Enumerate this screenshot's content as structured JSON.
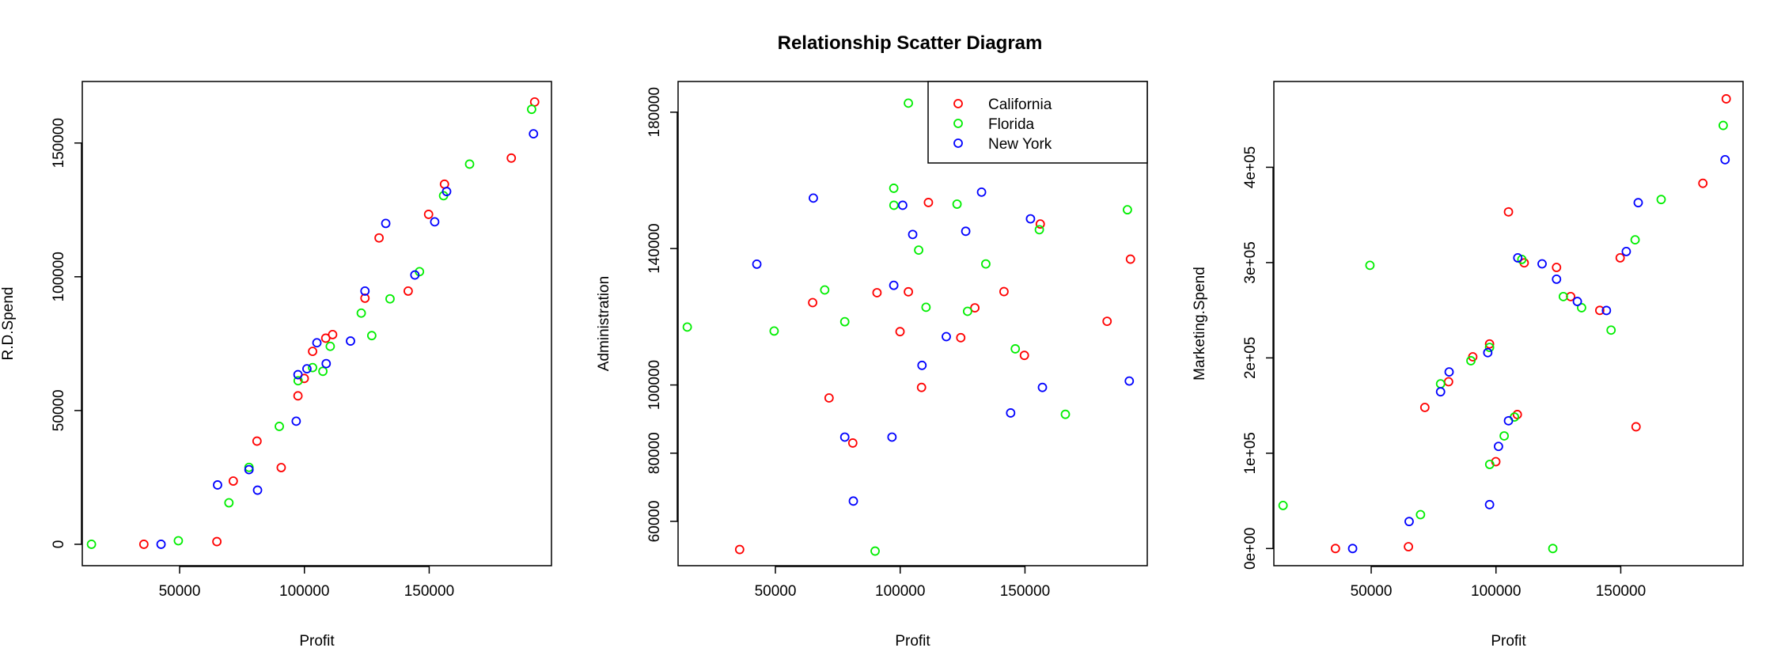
{
  "chart_data": {
    "title": "Relationship Scatter Diagram",
    "type": "scatter",
    "groups": [
      {
        "name": "California",
        "color": "#ff0000"
      },
      {
        "name": "Florida",
        "color": "#00ee00"
      },
      {
        "name": "New York",
        "color": "#0000ff"
      }
    ],
    "panels": [
      {
        "xlabel": "Profit",
        "ylabel": "R.D.Spend",
        "xlim": [
          11000,
          199000
        ],
        "ylim": [
          -8000,
          173000
        ],
        "x_ticks": [
          50000,
          100000,
          150000
        ],
        "x_tick_labels": [
          "50000",
          "100000",
          "150000"
        ],
        "y_ticks": [
          0,
          50000,
          100000,
          150000
        ],
        "y_tick_labels": [
          "0",
          "50000",
          "100000",
          "150000"
        ],
        "legend": null,
        "series": [
          {
            "group": "California",
            "points": [
              [
                35673,
                0
              ],
              [
                64927,
                1000
              ],
              [
                71498,
                23640
              ],
              [
                81005,
                38558
              ],
              [
                90708,
                28663
              ],
              [
                97427,
                55494
              ],
              [
                99938,
                61994
              ],
              [
                103282,
                72108
              ],
              [
                108552,
                77044
              ],
              [
                111313,
                78389
              ],
              [
                124266,
                91992
              ],
              [
                129917,
                114523
              ],
              [
                141586,
                94657
              ],
              [
                149760,
                123335
              ],
              [
                156123,
                134615
              ],
              [
                182902,
                144372
              ],
              [
                192262,
                165349
              ]
            ]
          },
          {
            "group": "Florida",
            "points": [
              [
                14681,
                0
              ],
              [
                49491,
                1316
              ],
              [
                69759,
                15506
              ],
              [
                77798,
                28754
              ],
              [
                89949,
                44070
              ],
              [
                97483,
                61136
              ],
              [
                103282,
                66052
              ],
              [
                107404,
                64665
              ],
              [
                110352,
                73994
              ],
              [
                122777,
                86420
              ],
              [
                126993,
                78013
              ],
              [
                134307,
                91749
              ],
              [
                146122,
                101913
              ],
              [
                155753,
                130298
              ],
              [
                166188,
                142107
              ],
              [
                191050,
                162598
              ]
            ]
          },
          {
            "group": "New York",
            "points": [
              [
                42560,
                0
              ],
              [
                65200,
                22178
              ],
              [
                77799,
                27893
              ],
              [
                81229,
                20230
              ],
              [
                96712,
                46014
              ],
              [
                97428,
                63408
              ],
              [
                101004,
                65605
              ],
              [
                105008,
                75329
              ],
              [
                108734,
                67533
              ],
              [
                118474,
                75973
              ],
              [
                124267,
                94657
              ],
              [
                132602,
                119943
              ],
              [
                144259,
                100672
              ],
              [
                152212,
                120543
              ],
              [
                156991,
                131877
              ],
              [
                191792,
                153442
              ]
            ]
          }
        ]
      },
      {
        "xlabel": "Profit",
        "ylabel": "Administration",
        "xlim": [
          11000,
          199000
        ],
        "ylim": [
          47000,
          189000
        ],
        "x_ticks": [
          50000,
          100000,
          150000
        ],
        "x_tick_labels": [
          "50000",
          "100000",
          "150000"
        ],
        "y_ticks": [
          60000,
          80000,
          100000,
          140000,
          180000
        ],
        "y_tick_labels": [
          "60000",
          "80000",
          "100000",
          "140000",
          "180000"
        ],
        "legend": "top-right",
        "series": [
          {
            "group": "California",
            "points": [
              [
                35673,
                51744
              ],
              [
                64927,
                124153
              ],
              [
                71498,
                96189
              ],
              [
                81005,
                82982
              ],
              [
                90708,
                127057
              ],
              [
                99938,
                115641
              ],
              [
                103282,
                127320
              ],
              [
                108552,
                99282
              ],
              [
                111313,
                153514
              ],
              [
                124266,
                113867
              ],
              [
                129917,
                122616
              ],
              [
                141586,
                127382
              ],
              [
                149760,
                108679
              ],
              [
                156123,
                147198
              ],
              [
                182902,
                118671
              ],
              [
                192262,
                136898
              ]
            ]
          },
          {
            "group": "Florida",
            "points": [
              [
                14681,
                116984
              ],
              [
                49491,
                115817
              ],
              [
                69759,
                127864
              ],
              [
                77798,
                118546
              ],
              [
                89949,
                51283
              ],
              [
                97427,
                157694
              ],
              [
                97483,
                152702
              ],
              [
                103282,
                182646
              ],
              [
                107404,
                139553
              ],
              [
                110352,
                122782
              ],
              [
                122777,
                153032
              ],
              [
                126993,
                121597
              ],
              [
                134307,
                135496
              ],
              [
                146122,
                110594
              ],
              [
                155753,
                145530
              ],
              [
                166188,
                91391
              ],
              [
                191050,
                151378
              ]
            ]
          },
          {
            "group": "New York",
            "points": [
              [
                42560,
                135427
              ],
              [
                65200,
                154806
              ],
              [
                77799,
                84710
              ],
              [
                81229,
                65948
              ],
              [
                96712,
                84710
              ],
              [
                97428,
                129219
              ],
              [
                101004,
                152702
              ],
              [
                105008,
                144136
              ],
              [
                108734,
                105751
              ],
              [
                118474,
                114175
              ],
              [
                126267,
                145078
              ],
              [
                132602,
                156547
              ],
              [
                144259,
                91791
              ],
              [
                152212,
                148719
              ],
              [
                156991,
                99282
              ],
              [
                191792,
                101146
              ]
            ]
          }
        ]
      },
      {
        "xlabel": "Profit",
        "ylabel": "Marketing.Spend",
        "xlim": [
          11000,
          199000
        ],
        "ylim": [
          -18000,
          490000
        ],
        "x_ticks": [
          50000,
          100000,
          150000
        ],
        "x_tick_labels": [
          "50000",
          "100000",
          "150000"
        ],
        "y_ticks": [
          0,
          100000,
          200000,
          300000,
          400000
        ],
        "y_tick_labels": [
          "0e+00",
          "1e+05",
          "2e+05",
          "3e+05",
          "4e+05"
        ],
        "legend": null,
        "series": [
          {
            "group": "California",
            "points": [
              [
                35673,
                0
              ],
              [
                64927,
                1904
              ],
              [
                71498,
                148001
              ],
              [
                81005,
                174999
              ],
              [
                90708,
                201127
              ],
              [
                97427,
                214634
              ],
              [
                99938,
                91131
              ],
              [
                105008,
                353183
              ],
              [
                108552,
                140574
              ],
              [
                111313,
                299737
              ],
              [
                124266,
                294919
              ],
              [
                129917,
                264346
              ],
              [
                141586,
                249839
              ],
              [
                149760,
                304981
              ],
              [
                156123,
                127716
              ],
              [
                182902,
                383199
              ],
              [
                192262,
                471784
              ]
            ]
          },
          {
            "group": "Florida",
            "points": [
              [
                14681,
                45173
              ],
              [
                49491,
                297114
              ],
              [
                69759,
                35534
              ],
              [
                77798,
                172795
              ],
              [
                89949,
                197029
              ],
              [
                97483,
                88218
              ],
              [
                97427,
                211025
              ],
              [
                103282,
                118148
              ],
              [
                107404,
                137962
              ],
              [
                110352,
                303319
              ],
              [
                122777,
                0
              ],
              [
                126993,
                264346
              ],
              [
                134307,
                252664
              ],
              [
                146122,
                229160
              ],
              [
                155753,
                323876
              ],
              [
                166188,
                366168
              ],
              [
                191050,
                443898
              ]
            ]
          },
          {
            "group": "New York",
            "points": [
              [
                42560,
                0
              ],
              [
                65200,
                28334
              ],
              [
                77799,
                164470
              ],
              [
                81229,
                185265
              ],
              [
                96712,
                205517
              ],
              [
                97428,
                46086
              ],
              [
                101004,
                107138
              ],
              [
                105008,
                134050
              ],
              [
                108734,
                304981
              ],
              [
                118474,
                298664
              ],
              [
                124267,
                282574
              ],
              [
                132602,
                259189
              ],
              [
                144259,
                249744
              ],
              [
                152212,
                311613
              ],
              [
                156991,
                362861
              ],
              [
                191792,
                407935
              ]
            ]
          }
        ]
      }
    ]
  }
}
